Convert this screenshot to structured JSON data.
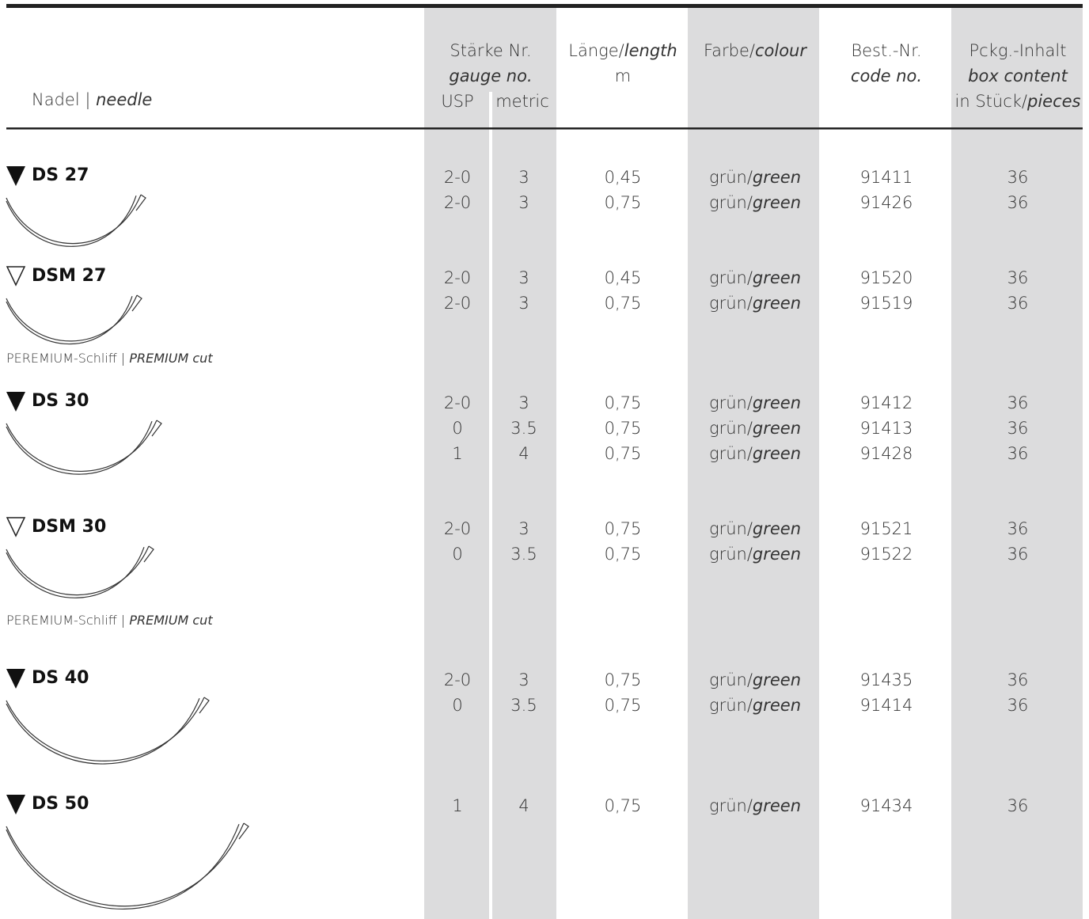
{
  "header": {
    "needle": "Nadel | ",
    "needle_en": "needle",
    "gauge": "Stärke Nr.",
    "gauge_en": "gauge no.",
    "usp": "USP",
    "metric": "metric",
    "length": "Länge/",
    "length_en": "length",
    "length_unit": "m",
    "colour": "Farbe/",
    "colour_en": "colour",
    "code": "Best.-Nr.",
    "code_en": "code no.",
    "box": "Pckg.-Inhalt",
    "box_en": "box content",
    "pieces": "in Stück/",
    "pieces_en": "pieces"
  },
  "groups": [
    {
      "name": "DS 27",
      "triangle": "filled",
      "rows": [
        [
          "2-0",
          "3",
          "0,45",
          "grün/",
          "green",
          "91411",
          "36"
        ],
        [
          "2-0",
          "3",
          "0,75",
          "grün/",
          "green",
          "91426",
          "36"
        ]
      ]
    },
    {
      "name": "DSM 27",
      "triangle": "outline",
      "note": "PEREMIUM-Schliff | ",
      "note_en": "PREMIUM cut",
      "rows": [
        [
          "2-0",
          "3",
          "0,45",
          "grün/",
          "green",
          "91520",
          "36"
        ],
        [
          "2-0",
          "3",
          "0,75",
          "grün/",
          "green",
          "91519",
          "36"
        ]
      ]
    },
    {
      "name": "DS 30",
      "triangle": "filled",
      "rows": [
        [
          "2-0",
          "3",
          "0,75",
          "grün/",
          "green",
          "91412",
          "36"
        ],
        [
          "0",
          "3.5",
          "0,75",
          "grün/",
          "green",
          "91413",
          "36"
        ],
        [
          "1",
          "4",
          "0,75",
          "grün/",
          "green",
          "91428",
          "36"
        ]
      ]
    },
    {
      "name": "DSM 30",
      "triangle": "outline",
      "note": "PEREMIUM-Schliff | ",
      "note_en": "PREMIUM cut",
      "rows": [
        [
          "2-0",
          "3",
          "0,75",
          "grün/",
          "green",
          "91521",
          "36"
        ],
        [
          "0",
          "3.5",
          "0,75",
          "grün/",
          "green",
          "91522",
          "36"
        ]
      ]
    },
    {
      "name": "DS 40",
      "triangle": "filled",
      "rows": [
        [
          "2-0",
          "3",
          "0,75",
          "grün/",
          "green",
          "91435",
          "36"
        ],
        [
          "0",
          "3.5",
          "0,75",
          "grün/",
          "green",
          "91414",
          "36"
        ]
      ]
    },
    {
      "name": "DS 50",
      "triangle": "filled",
      "rows": [
        [
          "1",
          "4",
          "0,75",
          "grün/",
          "green",
          "91434",
          "36"
        ]
      ]
    }
  ]
}
